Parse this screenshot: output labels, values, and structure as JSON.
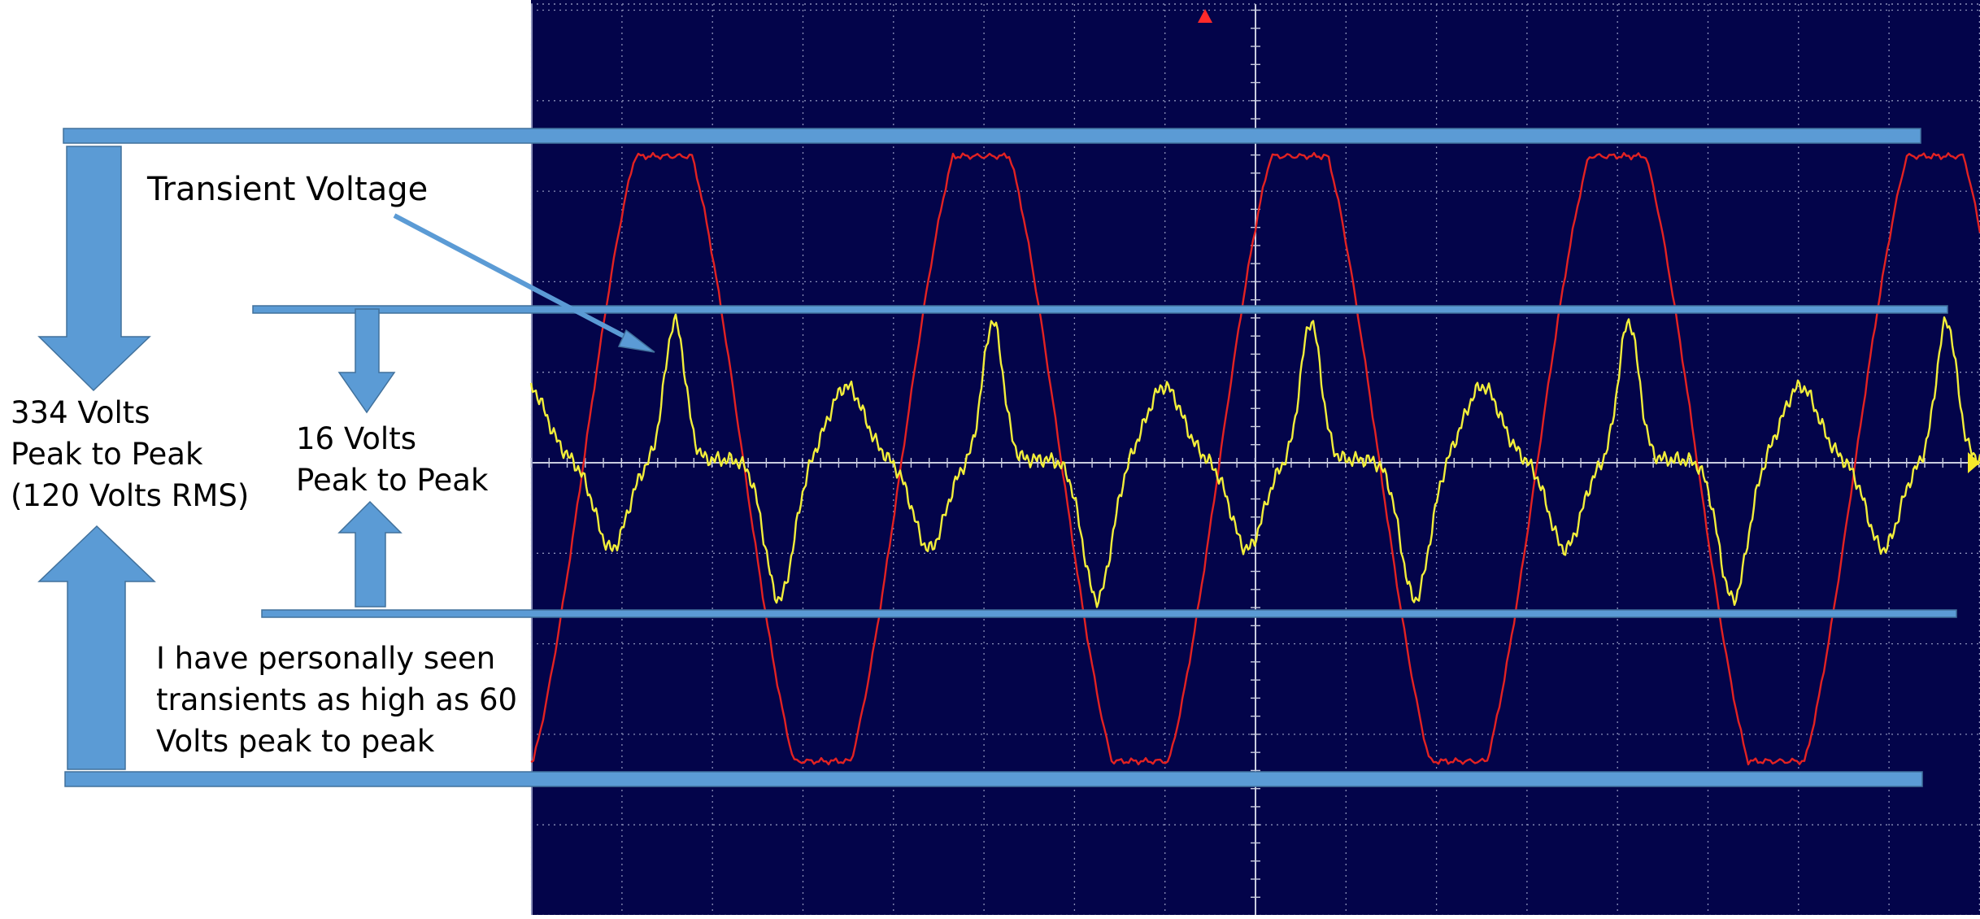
{
  "colors": {
    "screen_bg": "#03044a",
    "grid": "#8a8fb8",
    "grid_axis": "#c9cce0",
    "channel1": "#e32222",
    "channel2": "#f2ee3a",
    "annotation": "#5b9bd5",
    "annotation_stroke": "#41719c",
    "trigger_marker": "#ff2a2a",
    "ground_marker": "#f5e82a"
  },
  "labels": {
    "transient_voltage": "Transient Voltage",
    "big_amplitude": [
      "334 Volts",
      "Peak to Peak",
      "(120 Volts RMS)"
    ],
    "small_amplitude": [
      "16 Volts",
      "Peak to Peak"
    ],
    "note": [
      "I have personally seen",
      "transients as high as 60",
      "Volts peak to peak"
    ]
  },
  "chart_data": {
    "type": "line",
    "grid": true,
    "series": [
      {
        "shape": "clipped sine",
        "peak_to_peak_volts": 334,
        "rms_volts": 120,
        "cycles_shown": 4,
        "color": "#e32222"
      },
      {
        "shape": "transient ripple",
        "peak_to_peak_volts": 16,
        "cycles_shown": 8,
        "color": "#f2ee3a"
      }
    ]
  }
}
